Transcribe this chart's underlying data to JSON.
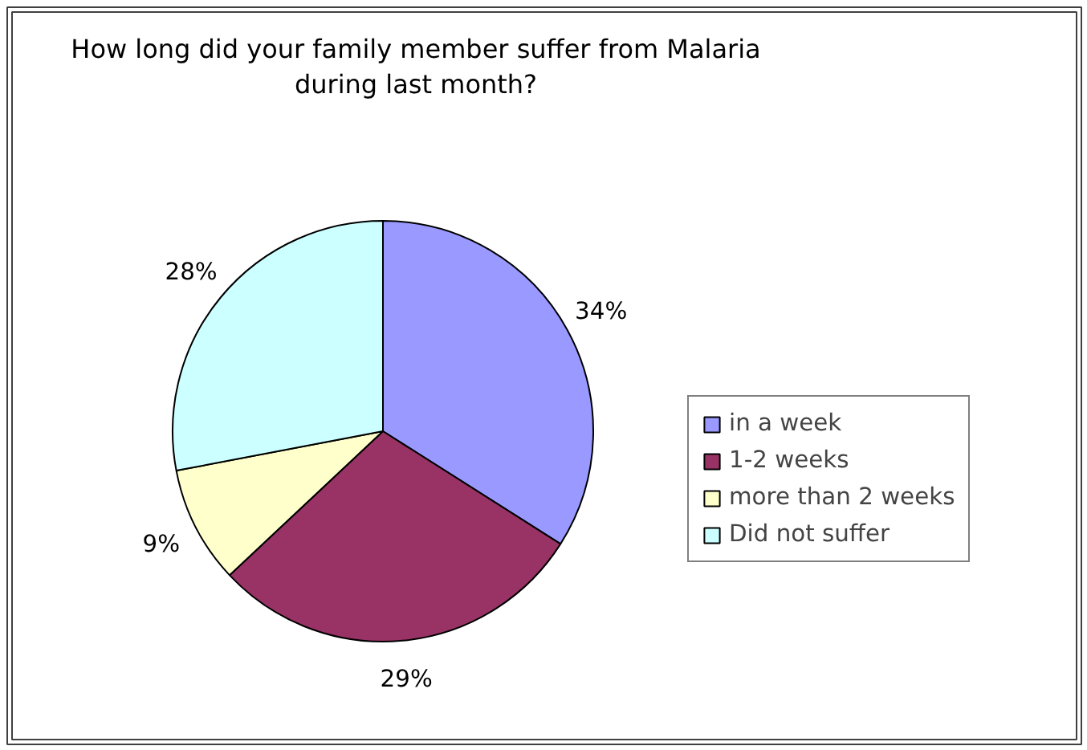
{
  "chart_data": {
    "type": "pie",
    "title": "How long did your family member suffer from Malaria during last month?",
    "categories": [
      "in a week",
      "1-2 weeks",
      "more than 2 weeks",
      "Did not suffer"
    ],
    "values": [
      34,
      29,
      9,
      28
    ],
    "colors": [
      "#9999ff",
      "#993366",
      "#ffffcc",
      "#ccffff"
    ],
    "value_labels": [
      "34%",
      "29%",
      "9%",
      "28%"
    ],
    "legend": "right"
  }
}
